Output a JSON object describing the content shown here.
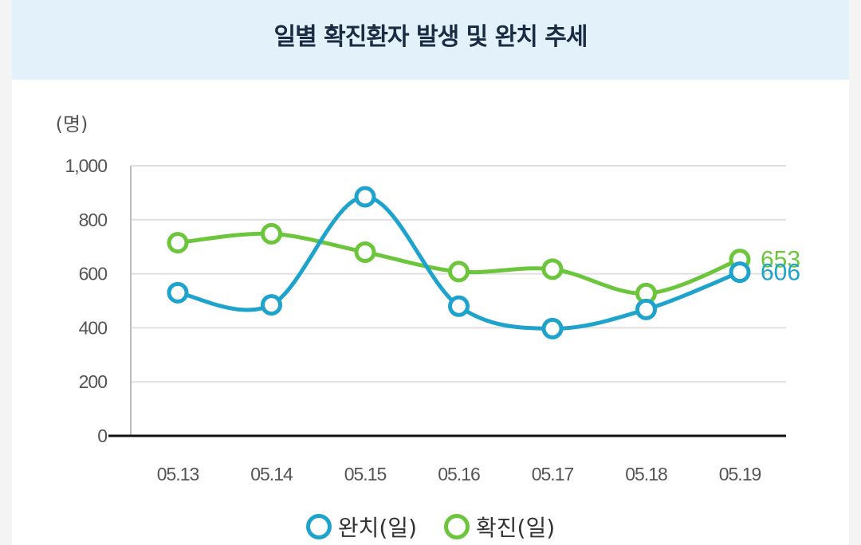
{
  "chart_data": {
    "type": "line",
    "title": "일별 확진환자 발생 및 완치 추세",
    "ylabel": "(명)",
    "categories": [
      "05.13",
      "05.14",
      "05.15",
      "05.16",
      "05.17",
      "05.18",
      "05.19"
    ],
    "ylim": [
      0,
      1000
    ],
    "yticks": [
      "0",
      "200",
      "400",
      "600",
      "800",
      "1,000"
    ],
    "grid": true,
    "legend_position": "bottom",
    "series": [
      {
        "name": "완치(일)",
        "color": "#1ea3cc",
        "values": [
          530,
          485,
          885,
          480,
          397,
          468,
          606
        ],
        "end_label": "606"
      },
      {
        "name": "확진(일)",
        "color": "#6cc63c",
        "values": [
          715,
          748,
          680,
          608,
          617,
          527,
          653
        ],
        "end_label": "653"
      }
    ]
  }
}
